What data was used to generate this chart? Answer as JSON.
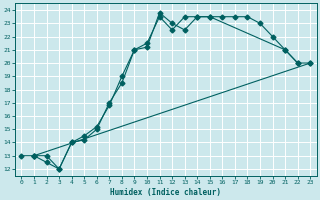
{
  "xlabel": "Humidex (Indice chaleur)",
  "bg_color": "#cce8ec",
  "grid_color": "#ffffff",
  "line_color": "#006060",
  "xlim": [
    -0.5,
    23.5
  ],
  "ylim": [
    11.5,
    24.5
  ],
  "xticks": [
    0,
    1,
    2,
    3,
    4,
    5,
    6,
    7,
    8,
    9,
    10,
    11,
    12,
    13,
    14,
    15,
    16,
    17,
    18,
    19,
    20,
    21,
    22,
    23
  ],
  "yticks": [
    12,
    13,
    14,
    15,
    16,
    17,
    18,
    19,
    20,
    21,
    22,
    23,
    24
  ],
  "line1_x": [
    0,
    1,
    2,
    3,
    4,
    5,
    6,
    7,
    8,
    9,
    10,
    11,
    12,
    13,
    14,
    15,
    16,
    17,
    18,
    19,
    20,
    21,
    22,
    23
  ],
  "line1_y": [
    13,
    13,
    12.5,
    12,
    14,
    14.2,
    15,
    17,
    18.5,
    21,
    21.2,
    23.8,
    23,
    22.5,
    23.5,
    23.5,
    23.5,
    23.5,
    23.5,
    23,
    22,
    21,
    20,
    20
  ],
  "line2_x": [
    1,
    2,
    3,
    4,
    5,
    6,
    7,
    8,
    9,
    10,
    11,
    12,
    13,
    14,
    15,
    21,
    22
  ],
  "line2_y": [
    13,
    13,
    12,
    14,
    14.5,
    15.2,
    16.8,
    19,
    21,
    21.5,
    23.5,
    22.5,
    23.5,
    23.5,
    23.5,
    21,
    20
  ],
  "line3_x": [
    1,
    23
  ],
  "line3_y": [
    13,
    20
  ]
}
